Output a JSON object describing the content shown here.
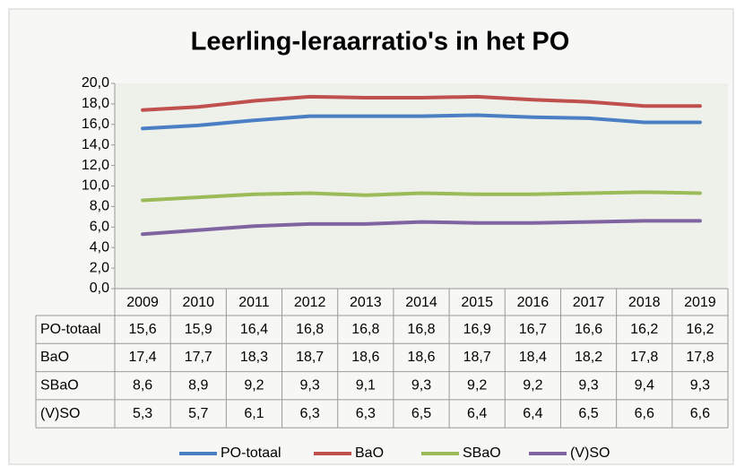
{
  "chart_data": {
    "type": "line",
    "title": "Leerling-leraarratio's in het PO",
    "categories": [
      "2009",
      "2010",
      "2011",
      "2012",
      "2013",
      "2014",
      "2015",
      "2016",
      "2017",
      "2018",
      "2019"
    ],
    "series": [
      {
        "name": "PO-totaal",
        "color": "#4a7fc4",
        "values": [
          15.6,
          15.9,
          16.4,
          16.8,
          16.8,
          16.8,
          16.9,
          16.7,
          16.6,
          16.2,
          16.2
        ],
        "value_labels": [
          "15,6",
          "15,9",
          "16,4",
          "16,8",
          "16,8",
          "16,8",
          "16,9",
          "16,7",
          "16,6",
          "16,2",
          "16,2"
        ]
      },
      {
        "name": "BaO",
        "color": "#c0504d",
        "values": [
          17.4,
          17.7,
          18.3,
          18.7,
          18.6,
          18.6,
          18.7,
          18.4,
          18.2,
          17.8,
          17.8
        ],
        "value_labels": [
          "17,4",
          "17,7",
          "18,3",
          "18,7",
          "18,6",
          "18,6",
          "18,7",
          "18,4",
          "18,2",
          "17,8",
          "17,8"
        ]
      },
      {
        "name": "SBaO",
        "color": "#9bbb59",
        "values": [
          8.6,
          8.9,
          9.2,
          9.3,
          9.1,
          9.3,
          9.2,
          9.2,
          9.3,
          9.4,
          9.3
        ],
        "value_labels": [
          "8,6",
          "8,9",
          "9,2",
          "9,3",
          "9,1",
          "9,3",
          "9,2",
          "9,2",
          "9,3",
          "9,4",
          "9,3"
        ]
      },
      {
        "name": "(V)SO",
        "color": "#8064a2",
        "values": [
          5.3,
          5.7,
          6.1,
          6.3,
          6.3,
          6.5,
          6.4,
          6.4,
          6.5,
          6.6,
          6.6
        ],
        "value_labels": [
          "5,3",
          "5,7",
          "6,1",
          "6,3",
          "6,3",
          "6,5",
          "6,4",
          "6,4",
          "6,5",
          "6,6",
          "6,6"
        ]
      }
    ],
    "ylim": [
      0,
      20
    ],
    "yticks": [
      {
        "value": 0,
        "label": "0,0"
      },
      {
        "value": 2,
        "label": "2,0"
      },
      {
        "value": 4,
        "label": "4,0"
      },
      {
        "value": 6,
        "label": "6,0"
      },
      {
        "value": 8,
        "label": "8,0"
      },
      {
        "value": 10,
        "label": "10,0"
      },
      {
        "value": 12,
        "label": "12,0"
      },
      {
        "value": 14,
        "label": "14,0"
      },
      {
        "value": 16,
        "label": "16,0"
      },
      {
        "value": 18,
        "label": "18,0"
      },
      {
        "value": 20,
        "label": "20,0"
      }
    ],
    "grid": false,
    "legend": "bottom"
  }
}
